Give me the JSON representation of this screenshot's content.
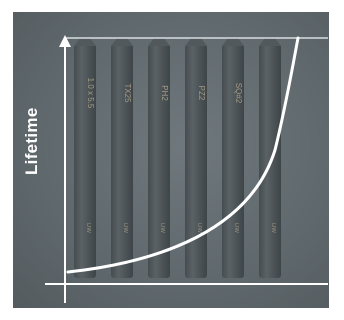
{
  "labels": {
    "y_axis": "Lifetime"
  },
  "bits": [
    {
      "label": "1.0 x 5.5",
      "mark": "DW"
    },
    {
      "label": "TX25",
      "mark": "DW"
    },
    {
      "label": "PH2",
      "mark": "DW"
    },
    {
      "label": "PZ2",
      "mark": "DW"
    },
    {
      "label": "SQ#2",
      "mark": "DW"
    },
    {
      "label": "",
      "mark": "DW"
    }
  ],
  "colors": {
    "panel": "#636c70",
    "bit": "#4b5357",
    "curve": "#ffffff",
    "axis": "#ffffff",
    "engraving": "#b5a98a"
  }
}
